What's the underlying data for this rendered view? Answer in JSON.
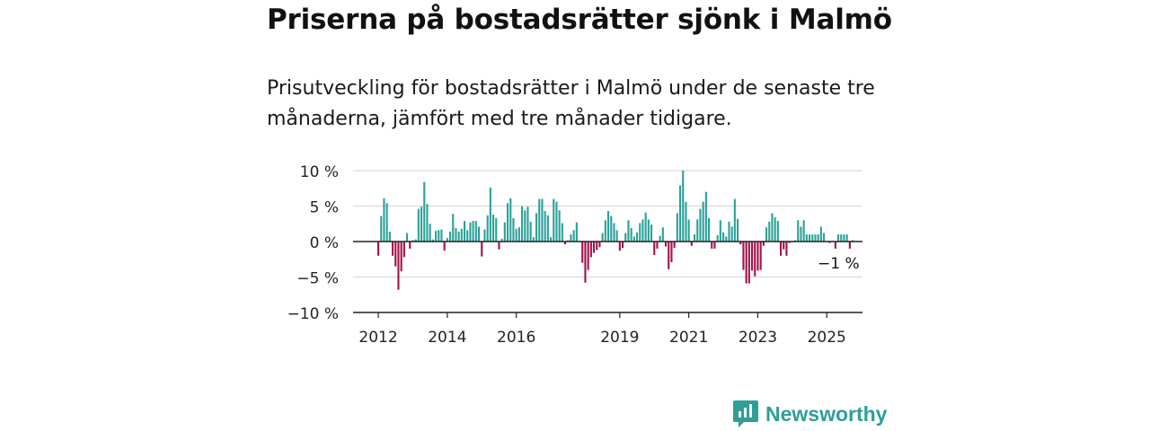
{
  "title": "Priserna på bostadsrätter sjönk i Malmö",
  "subtitle": "Prisutveckling för bostadsrätter i Malmö under de senaste tre månaderna, jämfört med tre månader tidigare.",
  "brand": "Newsworthy",
  "colors": {
    "positive": "#2aa198",
    "negative": "#a3124a",
    "grid": "#d9d9d9",
    "brand": "#2e9e96"
  },
  "chart_data": {
    "type": "bar",
    "ylim": [
      -10,
      10
    ],
    "yticks": [
      "10 %",
      "5 %",
      "0 %",
      "−5 %",
      "−10 %"
    ],
    "ytick_values": [
      10,
      5,
      0,
      -5,
      -10
    ],
    "xticks": [
      "2012",
      "2014",
      "2016",
      "2019",
      "2021",
      "2023",
      "2025"
    ],
    "xtick_years": [
      2012,
      2014,
      2016,
      2019,
      2021,
      2023,
      2025
    ],
    "x_start": 2012,
    "values": [
      -2,
      3.6,
      6.1,
      5.4,
      1.4,
      -2,
      -3.5,
      -6.8,
      -4.2,
      -2.2,
      1.2,
      -1,
      0.2,
      0.3,
      4.6,
      4.9,
      8.4,
      5.3,
      2.5,
      0.3,
      1.5,
      1.6,
      1.7,
      -1.3,
      0.5,
      1.4,
      3.9,
      1.9,
      1.4,
      1.8,
      2.9,
      1.6,
      2.7,
      2.9,
      2.9,
      2.1,
      -2.1,
      1.7,
      3.7,
      7.6,
      3.8,
      3.3,
      -1.1,
      0.4,
      2.7,
      5.4,
      6.1,
      3.3,
      1.8,
      2,
      5,
      4.4,
      4.9,
      2.8,
      0.6,
      4,
      6,
      6,
      4.3,
      3.7,
      0.6,
      6,
      5.6,
      4.4,
      2.6,
      -0.4,
      0.2,
      1,
      1.6,
      2.7,
      0.1,
      -3,
      -5.8,
      -4,
      -2.2,
      -1.6,
      -1.2,
      -0.8,
      1.2,
      3,
      4.3,
      3.6,
      2.6,
      1.6,
      -1.3,
      -0.9,
      1.2,
      3,
      1.9,
      0.7,
      1.3,
      2.6,
      3.1,
      4.1,
      3.1,
      2.4,
      -1.9,
      -1,
      0.8,
      2,
      -0.7,
      -3.9,
      -2.9,
      -0.9,
      4,
      7.9,
      10,
      5.6,
      3.1,
      -0.6,
      1,
      3.1,
      4.6,
      5.6,
      7,
      3.3,
      -1,
      -1,
      0.9,
      3,
      1.3,
      0.7,
      2.8,
      2.1,
      6,
      3.2,
      -0.4,
      -4,
      -5.9,
      -5.9,
      -4.1,
      -4.9,
      -4.1,
      -4,
      -0.6,
      2,
      2.8,
      4,
      3.4,
      2.9,
      -2,
      -1.1,
      -2,
      -0.2,
      -0.1,
      0.2,
      3,
      2.1,
      3,
      1,
      1,
      1,
      1,
      1,
      2.1,
      1.2,
      0.1,
      -0.2,
      0.1,
      -1,
      1,
      1,
      1,
      1,
      -1,
      0.2
    ],
    "last_label": "−1 %"
  }
}
